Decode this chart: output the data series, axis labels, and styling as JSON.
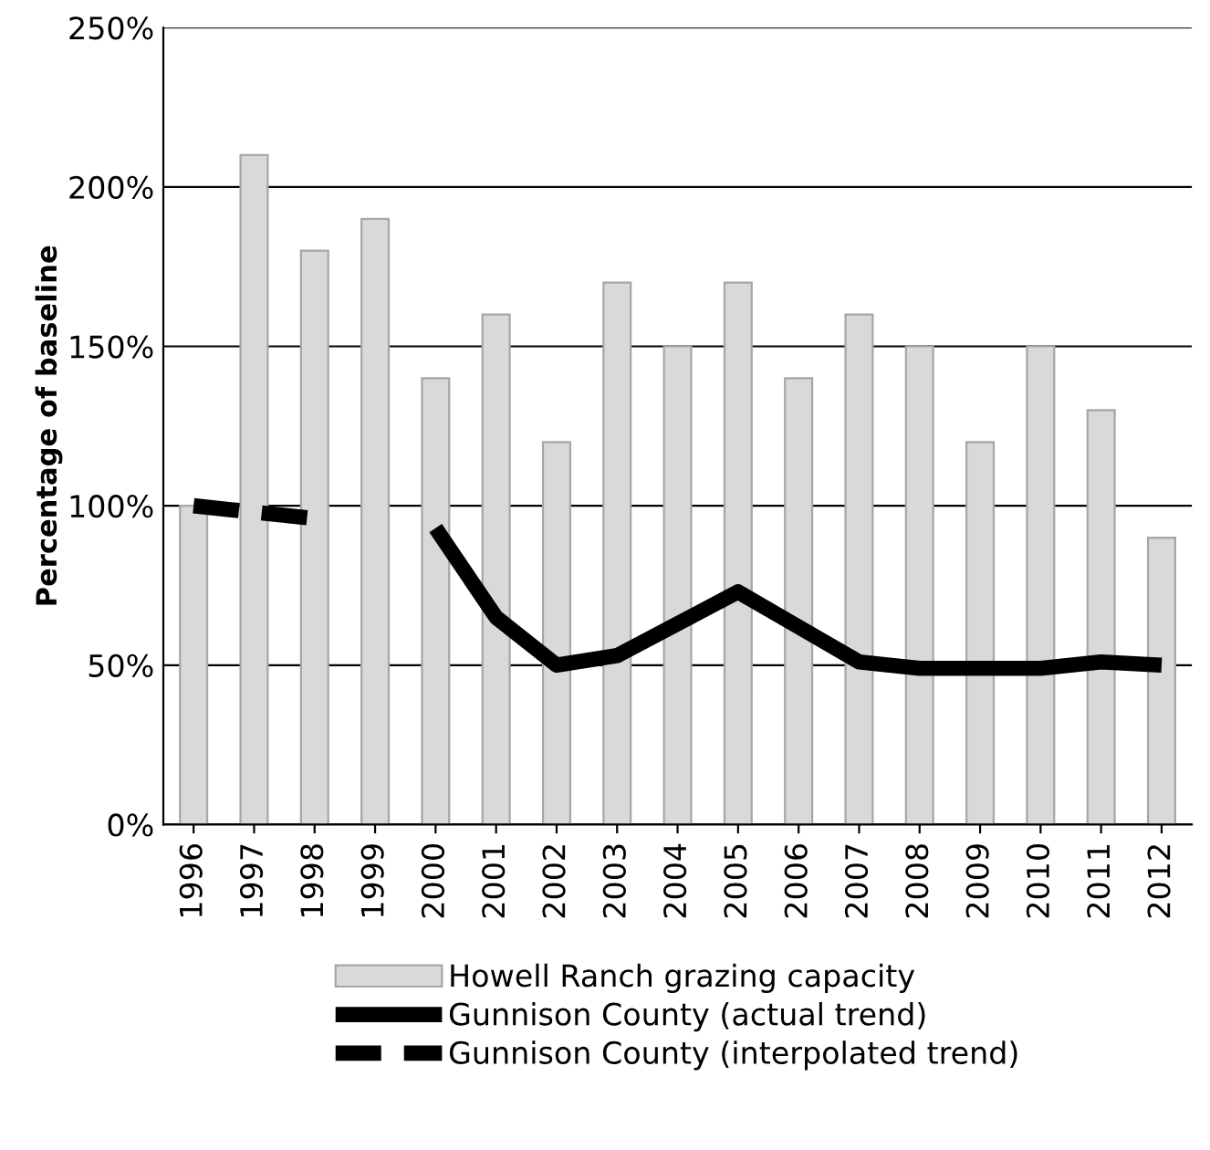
{
  "chart_data": {
    "type": "bar",
    "ylabel": "Percentage of baseline",
    "categories": [
      "1996",
      "1997",
      "1998",
      "1999",
      "2000",
      "2001",
      "2002",
      "2003",
      "2004",
      "2005",
      "2006",
      "2007",
      "2008",
      "2009",
      "2010",
      "2011",
      "2012"
    ],
    "series": [
      {
        "name": "Howell Ranch grazing capacity",
        "color": "#d9d9d9",
        "values": [
          100,
          210,
          180,
          190,
          140,
          160,
          120,
          170,
          150,
          170,
          140,
          160,
          150,
          120,
          150,
          130,
          90
        ]
      },
      {
        "name": "Gunnison County (actual trend)",
        "type": "line",
        "color": "#000000",
        "line_style": "solid",
        "values": [
          null,
          null,
          null,
          null,
          93,
          65,
          50,
          53,
          63,
          73,
          62,
          51,
          49,
          49,
          49,
          51,
          50
        ]
      },
      {
        "name": "Gunnison County (interpolated trend)",
        "type": "line",
        "color": "#000000",
        "line_style": "dashed",
        "values": [
          100,
          98,
          96,
          null,
          null,
          null,
          null,
          null,
          null,
          null,
          null,
          null,
          null,
          null,
          null,
          null,
          null
        ]
      }
    ],
    "ylim": [
      0,
      250
    ],
    "yticks": [
      {
        "value": 0,
        "label": "0%"
      },
      {
        "value": 50,
        "label": "50%"
      },
      {
        "value": 100,
        "label": "100%"
      },
      {
        "value": 150,
        "label": "150%"
      },
      {
        "value": 200,
        "label": "200%"
      },
      {
        "value": 250,
        "label": "250%"
      }
    ],
    "grid": "y",
    "legend": "bottom",
    "marker": "none"
  }
}
